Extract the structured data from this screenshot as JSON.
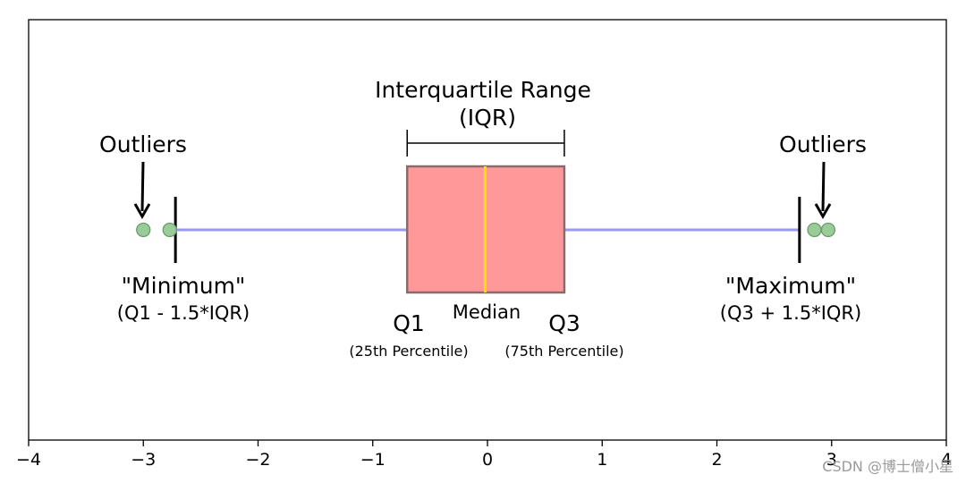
{
  "chart_data": {
    "type": "box",
    "xlim": [
      -4,
      4
    ],
    "x_ticks": [
      -4,
      -3,
      -2,
      -1,
      0,
      1,
      2,
      3,
      4
    ],
    "x_tick_labels": [
      "−4",
      "−3",
      "−2",
      "−1",
      "0",
      "1",
      "2",
      "3",
      "4"
    ],
    "grid": false,
    "box": {
      "q1": -0.7,
      "median": -0.02,
      "q3": 0.67,
      "whisker_low": -2.72,
      "whisker_high": 2.72,
      "outliers": [
        -3.0,
        -2.77,
        2.85,
        2.97
      ]
    },
    "colors": {
      "box_fill": "#ff9999",
      "box_edge": "#8a6a6a",
      "median": "#ffe100",
      "whisker": "#9999ee",
      "outlier_fill": "#99cc99",
      "outlier_edge": "#6a9a6a",
      "cap": "#000000"
    },
    "annotations": {
      "iqr_title": "Interquartile Range",
      "iqr_abbrev": "(IQR)",
      "outliers_left": "Outliers",
      "outliers_right": "Outliers",
      "minimum": "\"Minimum\"",
      "minimum_formula": "(Q1 - 1.5*IQR)",
      "maximum": "\"Maximum\"",
      "maximum_formula": "(Q3 + 1.5*IQR)",
      "q1": "Q1",
      "q1_sub": "(25th Percentile)",
      "median": "Median",
      "q3": "Q3",
      "q3_sub": "(75th Percentile)"
    }
  },
  "watermark": "CSDN @博士僧小星"
}
